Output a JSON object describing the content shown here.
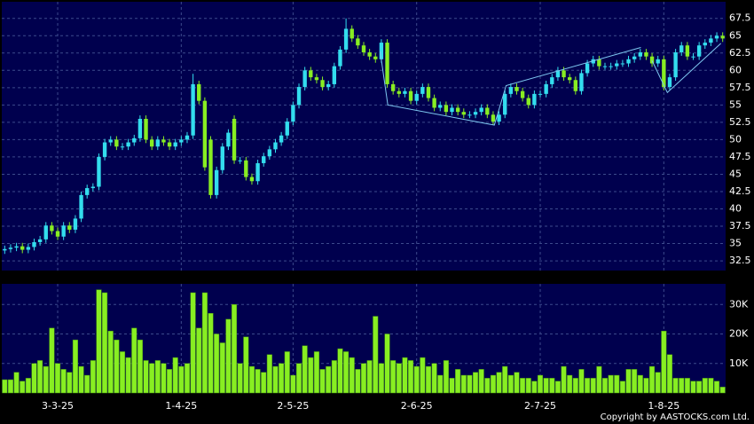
{
  "chart_data": [
    {
      "type": "candlestick",
      "up_color": "#33ddee",
      "down_color": "#88ee22",
      "open": [
        34.0,
        34.2,
        34.4,
        34.6,
        34.1,
        34.5,
        35.2,
        35.6,
        37.6,
        36.8,
        36.0,
        37.6,
        37.0,
        38.6,
        42.0,
        43.0,
        43.2,
        47.5,
        49.6,
        50.0,
        49.0,
        49.0,
        49.6,
        50.2,
        53.0,
        50.0,
        49.0,
        50.0,
        49.6,
        49.0,
        49.6,
        50.0,
        50.6,
        58.0,
        55.6,
        50.0,
        42.0,
        45.6,
        49.0,
        53.0,
        47.0,
        47.0,
        44.6,
        44.0,
        46.6,
        47.6,
        48.6,
        49.6,
        50.6,
        52.6,
        55.0,
        57.6,
        60.0,
        59.0,
        58.6,
        57.6,
        58.0,
        60.6,
        63.0,
        66.0,
        64.6,
        63.6,
        62.6,
        62.0,
        61.6,
        64.0,
        58.0,
        57.0,
        56.6,
        57.0,
        55.6,
        56.6,
        57.6,
        56.0,
        54.6,
        55.0,
        54.0,
        54.6,
        54.0,
        53.6,
        53.6,
        54.0,
        54.6,
        53.6,
        52.6,
        53.6,
        56.6,
        57.6,
        57.0,
        56.0,
        55.0,
        56.6,
        56.6,
        58.0,
        59.0,
        60.0,
        59.0,
        58.6,
        57.0,
        59.6,
        61.0,
        61.6,
        60.6,
        60.6,
        60.6,
        61.0,
        61.0,
        61.6,
        62.0,
        62.6,
        62.0,
        61.0,
        61.6,
        57.6,
        59.0,
        62.6,
        63.6,
        62.0,
        62.0,
        63.6,
        64.0,
        64.6,
        65.0
      ],
      "high": [
        34.7,
        34.9,
        35.1,
        35.1,
        35.0,
        35.7,
        36.1,
        38.1,
        38.1,
        37.3,
        38.1,
        38.1,
        39.1,
        42.5,
        43.5,
        43.7,
        48.0,
        50.1,
        50.5,
        50.5,
        49.5,
        50.1,
        50.7,
        53.5,
        53.5,
        50.5,
        50.5,
        50.5,
        50.1,
        50.1,
        50.5,
        51.1,
        59.5,
        58.5,
        56.1,
        50.5,
        46.1,
        49.5,
        51.5,
        53.5,
        47.5,
        47.5,
        45.1,
        47.1,
        48.1,
        49.1,
        50.1,
        51.1,
        53.1,
        55.5,
        58.1,
        60.5,
        60.5,
        59.5,
        59.1,
        58.5,
        61.1,
        63.5,
        67.5,
        66.5,
        65.1,
        64.1,
        63.1,
        62.5,
        64.5,
        64.5,
        58.5,
        57.5,
        57.5,
        57.5,
        57.1,
        58.1,
        58.1,
        56.5,
        55.5,
        55.5,
        55.1,
        55.1,
        54.5,
        54.1,
        54.5,
        55.1,
        55.1,
        54.1,
        54.1,
        57.1,
        58.1,
        58.1,
        57.5,
        56.5,
        57.1,
        57.1,
        58.5,
        59.5,
        60.5,
        60.5,
        59.5,
        59.1,
        60.1,
        61.5,
        62.1,
        62.1,
        61.1,
        61.1,
        61.5,
        61.5,
        62.1,
        62.5,
        63.1,
        63.1,
        62.5,
        62.1,
        62.1,
        59.5,
        63.1,
        64.1,
        64.1,
        62.5,
        64.1,
        64.5,
        65.1,
        65.5,
        65.5
      ],
      "low": [
        33.5,
        33.7,
        33.9,
        33.6,
        33.6,
        34.0,
        34.7,
        35.1,
        36.3,
        35.5,
        35.5,
        36.5,
        36.5,
        38.1,
        41.5,
        42.5,
        42.7,
        47.0,
        49.1,
        48.5,
        48.5,
        48.5,
        49.1,
        49.7,
        49.5,
        48.5,
        48.5,
        49.1,
        48.5,
        48.5,
        49.1,
        49.5,
        50.1,
        55.1,
        45.5,
        41.5,
        41.5,
        45.1,
        48.5,
        46.5,
        46.5,
        44.1,
        43.5,
        43.5,
        46.1,
        47.1,
        48.1,
        49.1,
        50.1,
        52.1,
        54.5,
        57.1,
        58.5,
        58.1,
        57.1,
        57.1,
        57.5,
        60.1,
        62.5,
        64.1,
        63.1,
        62.1,
        61.5,
        61.1,
        61.1,
        57.5,
        56.5,
        56.1,
        56.1,
        55.1,
        55.1,
        56.1,
        55.5,
        54.1,
        54.1,
        53.5,
        53.5,
        53.5,
        53.1,
        53.1,
        53.1,
        53.5,
        53.1,
        52.1,
        52.1,
        53.1,
        56.1,
        56.5,
        55.5,
        54.5,
        54.5,
        56.1,
        56.1,
        57.5,
        58.5,
        58.5,
        58.1,
        56.5,
        56.5,
        59.1,
        60.5,
        60.1,
        60.1,
        60.1,
        60.1,
        60.5,
        60.5,
        61.1,
        61.5,
        61.5,
        60.5,
        60.5,
        57.1,
        57.1,
        58.5,
        62.1,
        61.5,
        61.5,
        61.5,
        63.1,
        63.5,
        64.1,
        64.1
      ],
      "close": [
        34.2,
        34.4,
        34.6,
        34.1,
        34.5,
        35.2,
        35.6,
        37.6,
        36.8,
        36.0,
        37.6,
        37.0,
        38.6,
        42.0,
        43.0,
        43.2,
        47.5,
        49.6,
        50.0,
        49.0,
        49.0,
        49.6,
        50.2,
        53.0,
        50.0,
        49.0,
        50.0,
        49.6,
        49.0,
        49.6,
        50.0,
        50.6,
        58.0,
        55.6,
        46.0,
        42.0,
        45.6,
        49.0,
        51.0,
        47.0,
        47.0,
        44.6,
        44.0,
        46.6,
        47.6,
        48.6,
        49.6,
        50.6,
        52.6,
        55.0,
        57.6,
        60.0,
        59.0,
        58.6,
        57.6,
        58.0,
        60.6,
        63.0,
        66.0,
        64.6,
        63.6,
        62.6,
        62.0,
        61.6,
        64.0,
        58.0,
        57.0,
        56.6,
        57.0,
        55.6,
        56.6,
        57.6,
        56.0,
        54.6,
        55.0,
        54.0,
        54.6,
        54.0,
        53.6,
        53.6,
        54.0,
        54.6,
        53.6,
        52.6,
        53.6,
        56.6,
        57.6,
        57.0,
        56.0,
        55.0,
        56.6,
        56.6,
        58.0,
        59.0,
        60.0,
        59.0,
        58.6,
        57.0,
        59.6,
        61.0,
        61.6,
        60.6,
        60.6,
        60.6,
        61.0,
        61.0,
        61.6,
        62.0,
        62.6,
        62.0,
        61.0,
        61.6,
        57.6,
        59.0,
        62.6,
        63.6,
        62.0,
        62.0,
        63.6,
        64.0,
        64.6,
        65.0,
        64.6
      ],
      "trend_lines": [
        {
          "color": "#7ec8f0",
          "x": [
            63.8,
            65.1,
            83.2,
            85.2,
            108.1
          ],
          "y": [
            62.7,
            55.0,
            52.1,
            57.8,
            63.3
          ]
        },
        {
          "color": "#7ec8f0",
          "x": [
            110,
            112.6,
            121.7
          ],
          "y": [
            61.4,
            56.8,
            63.9
          ]
        }
      ],
      "ylim": [
        31.1,
        69.9
      ],
      "yticks": [
        32.5,
        35,
        37.5,
        40,
        42.5,
        45,
        47.5,
        50,
        52.5,
        55,
        57.5,
        60,
        62.5,
        65,
        67.5
      ],
      "grid": true
    },
    {
      "type": "bar",
      "color": "#88ee22",
      "categories": [
        null,
        null,
        null,
        null,
        null,
        null,
        null,
        null,
        null,
        "3-3-25",
        null,
        null,
        null,
        null,
        null,
        null,
        null,
        null,
        null,
        null,
        null,
        null,
        null,
        null,
        null,
        null,
        null,
        null,
        null,
        null,
        "1-4-25",
        null,
        null,
        null,
        null,
        null,
        null,
        null,
        null,
        null,
        null,
        null,
        null,
        null,
        null,
        null,
        null,
        null,
        null,
        "2-5-25",
        null,
        null,
        null,
        null,
        null,
        null,
        null,
        null,
        null,
        null,
        null,
        null,
        null,
        null,
        null,
        null,
        null,
        null,
        null,
        null,
        "2-6-25",
        null,
        null,
        null,
        null,
        null,
        null,
        null,
        null,
        null,
        null,
        null,
        null,
        null,
        null,
        null,
        null,
        null,
        null,
        null,
        null,
        "2-7-25",
        null,
        null,
        null,
        null,
        null,
        null,
        null,
        null,
        null,
        null,
        null,
        null,
        null,
        null,
        null,
        null,
        null,
        null,
        null,
        null,
        "1-8-25",
        null,
        null,
        null,
        null,
        null,
        null,
        null,
        null,
        null,
        null
      ],
      "values": [
        4500,
        4500,
        7000,
        4000,
        5000,
        10000,
        11000,
        9000,
        22000,
        10000,
        8000,
        7000,
        18000,
        9000,
        6000,
        11000,
        35000,
        34000,
        21000,
        18000,
        14000,
        12000,
        22000,
        18000,
        11000,
        10000,
        11000,
        10000,
        8000,
        12000,
        9000,
        10000,
        34000,
        22000,
        34000,
        27000,
        20000,
        17000,
        25000,
        30000,
        10000,
        19000,
        9000,
        8000,
        7000,
        13000,
        9000,
        10000,
        14000,
        6000,
        10000,
        16000,
        12000,
        14000,
        8000,
        9000,
        11000,
        15000,
        14000,
        12000,
        8000,
        10000,
        11000,
        26000,
        10000,
        20000,
        11000,
        10000,
        12000,
        11000,
        9000,
        12000,
        9000,
        10000,
        6000,
        11000,
        5000,
        8000,
        6000,
        6000,
        7000,
        8000,
        5000,
        6000,
        7000,
        9000,
        6000,
        7000,
        5000,
        5000,
        4000,
        6000,
        5000,
        5000,
        4000,
        9000,
        6000,
        5000,
        8000,
        5000,
        5000,
        9000,
        5000,
        6000,
        6000,
        4000,
        8000,
        8000,
        6000,
        5000,
        9000,
        7000,
        21000,
        13000,
        5000,
        5000,
        5000,
        4000,
        4000,
        5000,
        5000,
        4000,
        2000
      ],
      "ylim": [
        0,
        37000
      ],
      "yticks": [
        {
          "value": 10000,
          "label": "10K"
        },
        {
          "value": 20000,
          "label": "20K"
        },
        {
          "value": 30000,
          "label": "30K"
        }
      ],
      "grid": true,
      "footer": "Copyright by AASTOCKS.com Ltd."
    }
  ]
}
